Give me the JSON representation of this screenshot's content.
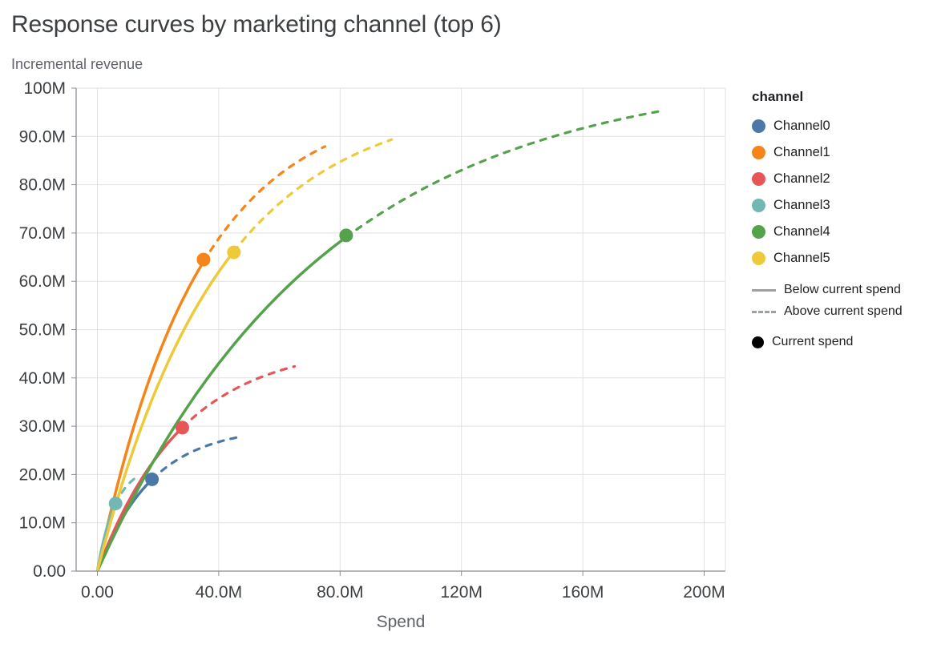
{
  "chart_data": {
    "type": "line",
    "title": "Response curves by marketing channel (top 6)",
    "subtitle": "Incremental revenue",
    "xlabel": "Spend",
    "ylabel": "Incremental revenue",
    "units": "millions",
    "xlim": [
      -7,
      207
    ],
    "ylim": [
      0,
      100
    ],
    "grid": true,
    "x_tick_values": [
      0,
      40,
      80,
      120,
      160,
      200
    ],
    "x_tick_labels": [
      "0.00",
      "40.0M",
      "80.0M",
      "120M",
      "160M",
      "200M"
    ],
    "y_tick_values": [
      0,
      10,
      20,
      30,
      40,
      50,
      60,
      70,
      80,
      90,
      100
    ],
    "y_tick_labels": [
      "0.00",
      "10.0M",
      "20.0M",
      "30.0M",
      "40.0M",
      "50.0M",
      "60.0M",
      "70.0M",
      "80.0M",
      "90.0M",
      "100M"
    ],
    "legend_title": "channel",
    "legend_position": "right",
    "line_styles": {
      "below_label": "Below current spend",
      "above_label": "Above current spend",
      "current_label": "Current spend"
    },
    "series": [
      {
        "name": "Channel0",
        "color": "#4c78a8",
        "current_spend_x": 18,
        "current_spend_y": 19,
        "max_spend_x": 47,
        "max_revenue_y": 27.8,
        "curve": {
          "asymptote": 30,
          "rate": 18
        }
      },
      {
        "name": "Channel1",
        "color": "#f58518",
        "current_spend_x": 35,
        "current_spend_y": 64.5,
        "max_spend_x": 75,
        "max_revenue_y": 88,
        "curve": {
          "asymptote": 98,
          "rate": 33
        }
      },
      {
        "name": "Channel2",
        "color": "#e45756",
        "current_spend_x": 28,
        "current_spend_y": 29.7,
        "max_spend_x": 65,
        "max_revenue_y": 42,
        "curve": {
          "asymptote": 47,
          "rate": 28
        }
      },
      {
        "name": "Channel3",
        "color": "#72b7b2",
        "current_spend_x": 6,
        "current_spend_y": 14,
        "max_spend_x": 13,
        "max_revenue_y": 19.5,
        "curve": {
          "asymptote": 22,
          "rate": 6
        }
      },
      {
        "name": "Channel4",
        "color": "#54a24b",
        "current_spend_x": 82,
        "current_spend_y": 69.5,
        "max_spend_x": 185,
        "max_revenue_y": 95.5,
        "curve": {
          "asymptote": 104,
          "rate": 75
        }
      },
      {
        "name": "Channel5",
        "color": "#eeca3b",
        "current_spend_x": 45,
        "current_spend_y": 66,
        "max_spend_x": 97,
        "max_revenue_y": 90,
        "curve": {
          "asymptote": 98,
          "rate": 40
        }
      }
    ],
    "style": {
      "grid_color": "#e2e2e2",
      "axis_color": "#8a8f94",
      "tick_label_color": "#3c4043",
      "title_color": "#3c4043",
      "subtitle_color": "#5f6368",
      "legend_line_color": "#9aa0a6",
      "current_dot_color": "#000000"
    }
  }
}
